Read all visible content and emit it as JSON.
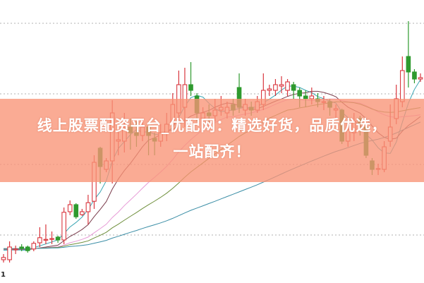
{
  "banner": {
    "line1": "线上股票配资平台_优配网：精选好货，品质优选，",
    "line2": "一站配齐！"
  },
  "chart_data": {
    "type": "candlestick",
    "title": "",
    "xlabel": "",
    "ylabel": "",
    "ylim": [
      0,
      100
    ],
    "grid": true,
    "grid_style": "dotted",
    "corner_label": "1",
    "colors": {
      "up": "#d9363e",
      "down": "#2e9a2e",
      "down_under_banner": "#8a7a2a",
      "grid": "#b0b0b0",
      "banner": "#f8a58c",
      "ma_lines": [
        "#3aa6b4",
        "#7a3c4c",
        "#e79ad6",
        "#6f8f3c",
        "#3b8ea6"
      ]
    },
    "candles_ohlc": [
      [
        8,
        8.8,
        10,
        7
      ],
      [
        8,
        12.5,
        14.5,
        7
      ],
      [
        11.5,
        11.8,
        13,
        10
      ],
      [
        12.5,
        12,
        13.5,
        11
      ],
      [
        12.5,
        11.2,
        13,
        10.5
      ],
      [
        11.8,
        13.8,
        14.5,
        11
      ],
      [
        14,
        15.8,
        19.5,
        12.5
      ],
      [
        15,
        15.2,
        20.5,
        13.5
      ],
      [
        15.5,
        15.5,
        18,
        13.5
      ],
      [
        16,
        15,
        16.5,
        14
      ],
      [
        15,
        24.8,
        26.5,
        13.5
      ],
      [
        25,
        27.5,
        29,
        23.8
      ],
      [
        27.5,
        23.2,
        28,
        22.5
      ],
      [
        24,
        25,
        26,
        23.5
      ],
      [
        25,
        28.2,
        31,
        20.5
      ],
      [
        28.7,
        42.5,
        45,
        26
      ],
      [
        47.5,
        41,
        48,
        35
      ],
      [
        40,
        43,
        44,
        39
      ],
      [
        43,
        60,
        64.5,
        35
      ],
      [
        50,
        50.5,
        55,
        45
      ],
      [
        50,
        55,
        60,
        46
      ],
      [
        55,
        53,
        58,
        47
      ],
      [
        53,
        52,
        57,
        48
      ],
      [
        52,
        55,
        58,
        50
      ],
      [
        55,
        52,
        57,
        45
      ],
      [
        51,
        50,
        53,
        45
      ],
      [
        50,
        53,
        56,
        48
      ],
      [
        53,
        56,
        60,
        50
      ],
      [
        56,
        63,
        67,
        54
      ],
      [
        60,
        70,
        75,
        57
      ],
      [
        62,
        70,
        76,
        55
      ],
      [
        70,
        68,
        78,
        66
      ],
      [
        66,
        60,
        67,
        57
      ],
      [
        58,
        60,
        62,
        56
      ],
      [
        60,
        59,
        63,
        56
      ],
      [
        59,
        61,
        65,
        57
      ],
      [
        61,
        62,
        66,
        59
      ],
      [
        60,
        62,
        64,
        58
      ],
      [
        63,
        61,
        65,
        59
      ],
      [
        69,
        62,
        74,
        60
      ],
      [
        61,
        63,
        65,
        59
      ],
      [
        62,
        61,
        64,
        59
      ],
      [
        61,
        64,
        66,
        60
      ],
      [
        63,
        68,
        74,
        61
      ],
      [
        68,
        68.5,
        70,
        66
      ],
      [
        68,
        70,
        72,
        66
      ],
      [
        69.5,
        70,
        73,
        67
      ],
      [
        68,
        71,
        72,
        66
      ],
      [
        70,
        68,
        71,
        65
      ],
      [
        68,
        66,
        69,
        62
      ],
      [
        66,
        65,
        68,
        62
      ],
      [
        65,
        66,
        69,
        63
      ],
      [
        65,
        64,
        67,
        62
      ],
      [
        64,
        64,
        66,
        61
      ],
      [
        64,
        62,
        65,
        59
      ],
      [
        61,
        61.5,
        63,
        58
      ],
      [
        61,
        50,
        61.5,
        49
      ],
      [
        50,
        54,
        56,
        48
      ],
      [
        53,
        57,
        60,
        50
      ],
      [
        58,
        56,
        59,
        52
      ],
      [
        55,
        45,
        56,
        44
      ],
      [
        43,
        40,
        44,
        38
      ],
      [
        40,
        40.3,
        42,
        38
      ],
      [
        40,
        48,
        50,
        39
      ],
      [
        50,
        55,
        63,
        48
      ],
      [
        58,
        65,
        70,
        56
      ],
      [
        64,
        75,
        80,
        62
      ],
      [
        80,
        74.5,
        92.5,
        69
      ],
      [
        74.5,
        72,
        75.5,
        70.5
      ],
      [
        72,
        72.5,
        74,
        71
      ]
    ]
  }
}
